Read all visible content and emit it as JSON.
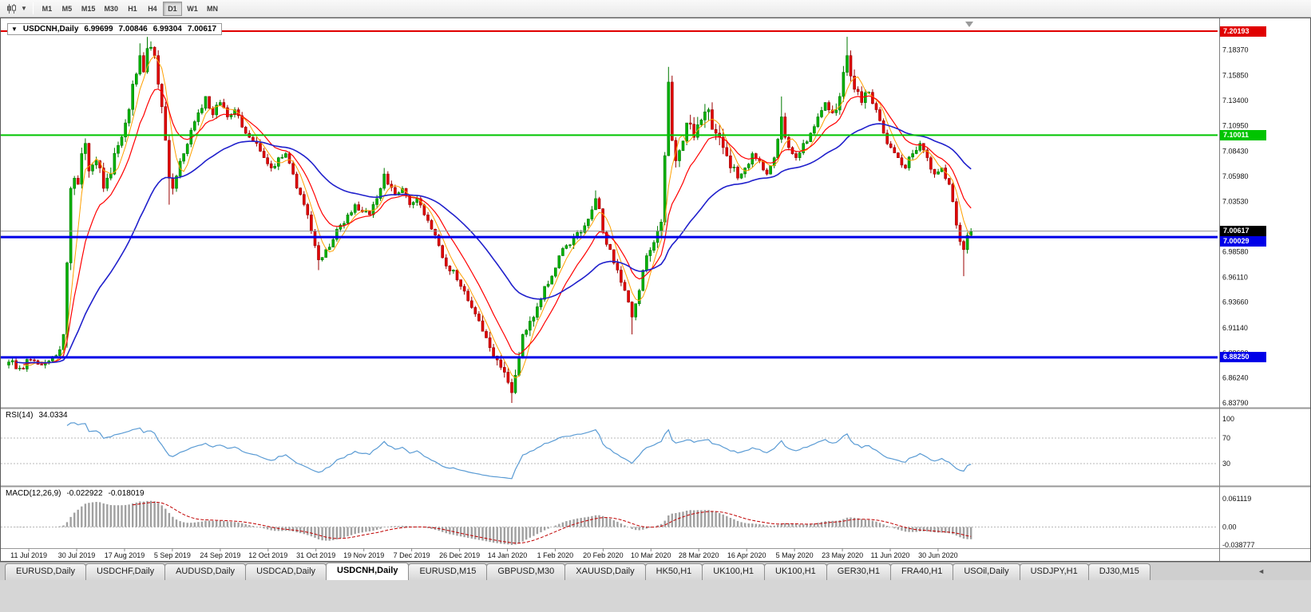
{
  "toolbar": {
    "timeframes": [
      "M1",
      "M5",
      "M15",
      "M30",
      "H1",
      "H4",
      "D1",
      "W1",
      "MN"
    ],
    "active_timeframe": "D1"
  },
  "chart": {
    "info_box": {
      "symbol": "USDCNH,Daily",
      "open": "6.99699",
      "high": "7.00846",
      "low": "6.99304",
      "close": "7.00617"
    },
    "levels": [
      {
        "label": "7.20193",
        "value": 7.20193,
        "color": "#e00000",
        "width": 2
      },
      {
        "label": "7.10011",
        "value": 7.10011,
        "color": "#00c400",
        "width": 2
      },
      {
        "label": "7.00029",
        "value": 7.00029,
        "color": "#0000e8",
        "width": 3
      },
      {
        "label": "6.88250",
        "value": 6.8825,
        "color": "#0000e8",
        "width": 3
      }
    ],
    "current_price": {
      "label": "7.00617",
      "value": 7.00617,
      "line_color": "#909090",
      "badge_bg": "#000000"
    },
    "y_axis_ticks": [
      "7.18370",
      "7.15850",
      "7.13400",
      "7.10950",
      "7.08430",
      "7.05980",
      "7.03530",
      "6.98580",
      "6.96110",
      "6.93660",
      "6.91140",
      "6.88690",
      "6.86240",
      "6.83790"
    ],
    "x_axis_dates": [
      "11 Jul 2019",
      "30 Jul 2019",
      "17 Aug 2019",
      "5 Sep 2019",
      "24 Sep 2019",
      "12 Oct 2019",
      "31 Oct 2019",
      "19 Nov 2019",
      "7 Dec 2019",
      "26 Dec 2019",
      "14 Jan 2020",
      "1 Feb 2020",
      "20 Feb 2020",
      "10 Mar 2020",
      "28 Mar 2020",
      "16 Apr 2020",
      "5 May 2020",
      "23 May 2020",
      "11 Jun 2020",
      "30 Jun 2020"
    ]
  },
  "rsi": {
    "name": "RSI(14)",
    "value": "34.0334",
    "ticks": [
      "100",
      "70",
      "30"
    ],
    "dashed_levels": [
      70,
      30
    ]
  },
  "macd": {
    "name": "MACD(12,26,9)",
    "main": "-0.022922",
    "signal": "-0.018019",
    "ticks": [
      "0.061119",
      "0.00",
      "-0.038777"
    ]
  },
  "tabs": {
    "items": [
      "EURUSD,Daily",
      "USDCHF,Daily",
      "AUDUSD,Daily",
      "USDCAD,Daily",
      "USDCNH,Daily",
      "EURUSD,M15",
      "GBPUSD,M30",
      "XAUUSD,Daily",
      "HK50,H1",
      "UK100,H1",
      "UK100,H1",
      "GER30,H1",
      "FRA40,H1",
      "USOil,Daily",
      "USDJPY,H1",
      "DJ30,M15"
    ],
    "active_index": 4,
    "scroll_left_arrow": "◄"
  },
  "chart_data": {
    "type": "candlestick",
    "symbol": "USDCNH",
    "timeframe": "Daily",
    "title": "USDCNH,Daily",
    "ohlc_current": {
      "open": 6.99699,
      "high": 7.00846,
      "low": 6.99304,
      "close": 7.00617
    },
    "price_range": [
      6.8332,
      7.2129
    ],
    "num_candles": 265,
    "horizontal_levels": [
      7.20193,
      7.10011,
      7.00029,
      6.8825
    ],
    "indicators": {
      "rsi_period": 14,
      "rsi_last": 34.0334,
      "macd_params": [
        12,
        26,
        9
      ],
      "macd_last": [
        -0.022922,
        -0.018019
      ]
    },
    "anchors": [
      [
        0,
        6.878
      ],
      [
        3,
        6.872
      ],
      [
        6,
        6.88
      ],
      [
        9,
        6.875
      ],
      [
        12,
        6.882
      ],
      [
        14,
        6.89
      ],
      [
        15,
        6.905
      ],
      [
        16,
        6.975
      ],
      [
        17,
        7.048
      ],
      [
        18,
        7.058
      ],
      [
        19,
        7.052
      ],
      [
        20,
        7.082
      ],
      [
        21,
        7.092
      ],
      [
        22,
        7.065
      ],
      [
        24,
        7.075
      ],
      [
        26,
        7.048
      ],
      [
        28,
        7.062
      ],
      [
        30,
        7.09
      ],
      [
        32,
        7.112
      ],
      [
        34,
        7.15
      ],
      [
        36,
        7.178
      ],
      [
        37,
        7.162
      ],
      [
        38,
        7.185
      ],
      [
        40,
        7.178
      ],
      [
        41,
        7.15
      ],
      [
        42,
        7.128
      ],
      [
        43,
        7.095
      ],
      [
        44,
        7.058
      ],
      [
        45,
        7.048
      ],
      [
        46,
        7.06
      ],
      [
        48,
        7.082
      ],
      [
        50,
        7.105
      ],
      [
        52,
        7.122
      ],
      [
        54,
        7.138
      ],
      [
        56,
        7.12
      ],
      [
        58,
        7.132
      ],
      [
        60,
        7.118
      ],
      [
        62,
        7.125
      ],
      [
        64,
        7.108
      ],
      [
        66,
        7.098
      ],
      [
        68,
        7.092
      ],
      [
        70,
        7.078
      ],
      [
        72,
        7.068
      ],
      [
        74,
        7.078
      ],
      [
        76,
        7.082
      ],
      [
        78,
        7.062
      ],
      [
        80,
        7.042
      ],
      [
        82,
        7.022
      ],
      [
        84,
        6.992
      ],
      [
        85,
        6.978
      ],
      [
        87,
        6.988
      ],
      [
        89,
        6.998
      ],
      [
        91,
        7.012
      ],
      [
        93,
        7.022
      ],
      [
        95,
        7.032
      ],
      [
        97,
        7.025
      ],
      [
        99,
        7.022
      ],
      [
        101,
        7.038
      ],
      [
        102,
        7.048
      ],
      [
        103,
        7.062
      ],
      [
        104,
        7.052
      ],
      [
        106,
        7.042
      ],
      [
        108,
        7.048
      ],
      [
        110,
        7.032
      ],
      [
        112,
        7.038
      ],
      [
        114,
        7.022
      ],
      [
        116,
        7.008
      ],
      [
        118,
        6.992
      ],
      [
        120,
        6.972
      ],
      [
        122,
        6.968
      ],
      [
        124,
        6.952
      ],
      [
        126,
        6.938
      ],
      [
        128,
        6.925
      ],
      [
        130,
        6.908
      ],
      [
        132,
        6.892
      ],
      [
        134,
        6.88
      ],
      [
        136,
        6.868
      ],
      [
        137,
        6.858
      ],
      [
        138,
        6.848
      ],
      [
        139,
        6.865
      ],
      [
        140,
        6.882
      ],
      [
        141,
        6.905
      ],
      [
        143,
        6.918
      ],
      [
        145,
        6.932
      ],
      [
        147,
        6.952
      ],
      [
        149,
        6.962
      ],
      [
        151,
        6.982
      ],
      [
        153,
        6.992
      ],
      [
        155,
        7.0
      ],
      [
        157,
        7.005
      ],
      [
        159,
        7.018
      ],
      [
        161,
        7.038
      ],
      [
        162,
        7.028
      ],
      [
        163,
        7.005
      ],
      [
        165,
        6.988
      ],
      [
        167,
        6.968
      ],
      [
        169,
        6.948
      ],
      [
        171,
        6.922
      ],
      [
        173,
        6.948
      ],
      [
        175,
        6.982
      ],
      [
        177,
        6.995
      ],
      [
        179,
        7.015
      ],
      [
        180,
        7.08
      ],
      [
        181,
        7.152
      ],
      [
        182,
        7.095
      ],
      [
        183,
        7.075
      ],
      [
        184,
        7.085
      ],
      [
        186,
        7.112
      ],
      [
        188,
        7.098
      ],
      [
        190,
        7.115
      ],
      [
        192,
        7.125
      ],
      [
        194,
        7.102
      ],
      [
        196,
        7.088
      ],
      [
        198,
        7.068
      ],
      [
        200,
        7.058
      ],
      [
        202,
        7.068
      ],
      [
        204,
        7.082
      ],
      [
        206,
        7.075
      ],
      [
        208,
        7.062
      ],
      [
        210,
        7.078
      ],
      [
        212,
        7.118
      ],
      [
        213,
        7.098
      ],
      [
        214,
        7.088
      ],
      [
        216,
        7.078
      ],
      [
        218,
        7.092
      ],
      [
        220,
        7.102
      ],
      [
        222,
        7.118
      ],
      [
        224,
        7.132
      ],
      [
        226,
        7.122
      ],
      [
        228,
        7.138
      ],
      [
        230,
        7.178
      ],
      [
        231,
        7.158
      ],
      [
        232,
        7.145
      ],
      [
        234,
        7.132
      ],
      [
        236,
        7.142
      ],
      [
        238,
        7.125
      ],
      [
        240,
        7.102
      ],
      [
        242,
        7.088
      ],
      [
        244,
        7.078
      ],
      [
        246,
        7.068
      ],
      [
        248,
        7.082
      ],
      [
        250,
        7.092
      ],
      [
        252,
        7.078
      ],
      [
        254,
        7.062
      ],
      [
        256,
        7.068
      ],
      [
        258,
        7.052
      ],
      [
        259,
        7.035
      ],
      [
        260,
        7.012
      ],
      [
        261,
        6.996
      ],
      [
        262,
        6.988
      ],
      [
        263,
        7.002
      ],
      [
        264,
        7.006
      ]
    ],
    "spikes": [
      [
        16,
        "l",
        6.892
      ],
      [
        36,
        "h",
        7.19
      ],
      [
        38,
        "h",
        7.1963
      ],
      [
        44,
        "l",
        7.032
      ],
      [
        85,
        "l",
        6.968
      ],
      [
        103,
        "h",
        7.068
      ],
      [
        138,
        "l",
        6.8379
      ],
      [
        161,
        "h",
        7.046
      ],
      [
        171,
        "l",
        6.905
      ],
      [
        181,
        "h",
        7.167
      ],
      [
        212,
        "h",
        7.138
      ],
      [
        230,
        "h",
        7.1964
      ],
      [
        262,
        "l",
        6.962
      ]
    ],
    "vol_zones": [
      [
        14,
        45,
        1.8
      ],
      [
        128,
        145,
        1.5
      ],
      [
        176,
        200,
        2.2
      ],
      [
        226,
        236,
        1.6
      ]
    ],
    "colors": {
      "up": "#00b200",
      "up_stroke": "#007a00",
      "down": "#e10000",
      "down_stroke": "#9b0000",
      "ma_fast": "#ffa000",
      "ma_mid": "#ff0000",
      "ma_slow": "#2020cc",
      "rsi": "#5a9bd4",
      "macd_hist": "#a0a0a0",
      "macd_signal": "#c00000",
      "level_red": "#e00000",
      "level_green": "#00c400",
      "level_blue": "#0000e8",
      "current_line": "#909090"
    }
  }
}
